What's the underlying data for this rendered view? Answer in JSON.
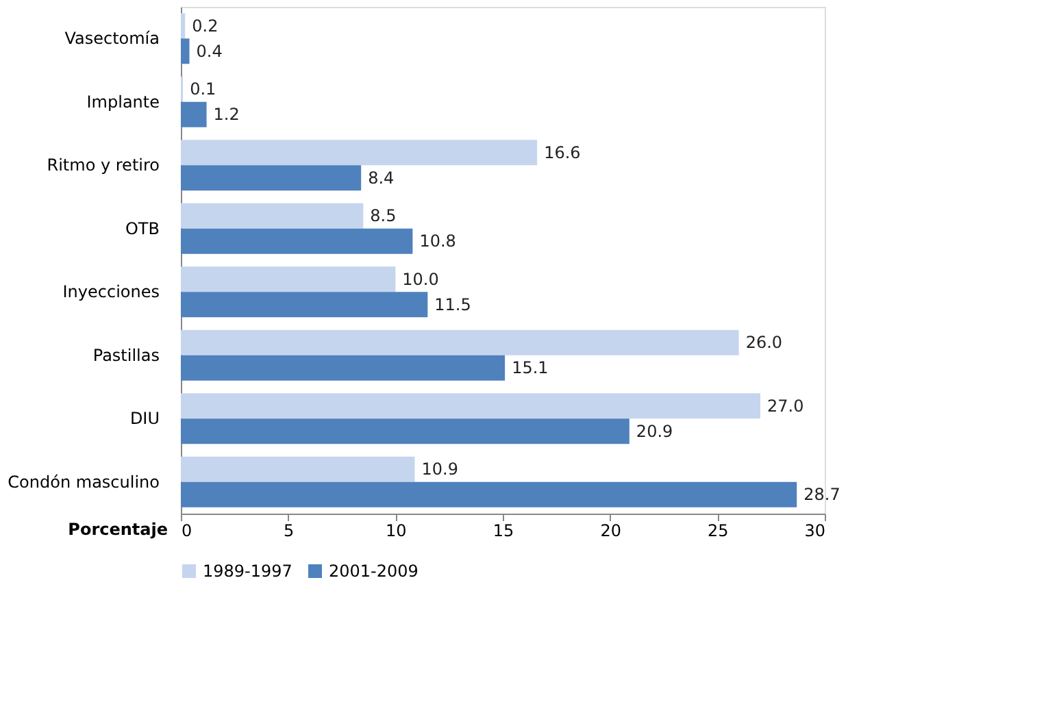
{
  "chart_data": {
    "type": "bar",
    "orientation": "horizontal",
    "xlabel": "Porcentaje",
    "categories": [
      "Vasectomía",
      "Implante",
      "Ritmo y retiro",
      "OTB",
      "Inyecciones",
      "Pastillas",
      "DIU",
      "Condón masculino"
    ],
    "series": [
      {
        "name": "1989-1997",
        "color": "#c6d5ee",
        "values": [
          0.2,
          0.1,
          16.6,
          8.5,
          10.0,
          26.0,
          27.0,
          10.9
        ],
        "value_labels": [
          "0.2",
          "0.1",
          "16.6",
          "8.5",
          "10.0",
          "26.0",
          "27.0",
          "10.9"
        ]
      },
      {
        "name": "2001-2009",
        "color": "#4f81bd",
        "values": [
          0.4,
          1.2,
          8.4,
          10.8,
          11.5,
          15.1,
          20.9,
          28.7
        ],
        "value_labels": [
          "0.4",
          "1.2",
          "8.4",
          "10.8",
          "11.5",
          "15.1",
          "20.9",
          "28.7"
        ]
      }
    ],
    "xlim": [
      0,
      30
    ],
    "xticks": [
      0,
      5,
      10,
      15,
      20,
      25,
      30
    ],
    "legend": "bottom"
  }
}
